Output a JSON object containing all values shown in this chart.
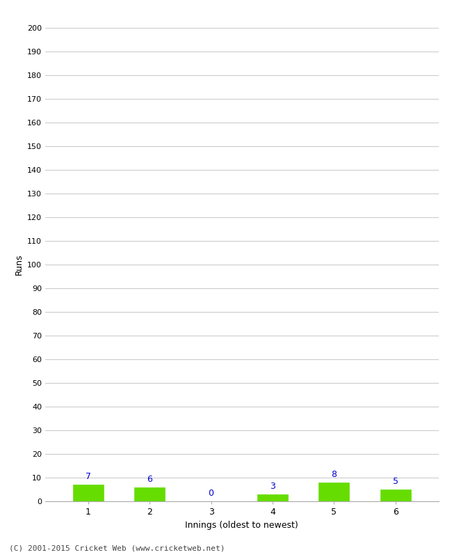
{
  "categories": [
    1,
    2,
    3,
    4,
    5,
    6
  ],
  "values": [
    7,
    6,
    0,
    3,
    8,
    5
  ],
  "bar_color": "#66dd00",
  "bar_edge_color": "#66dd00",
  "label_color": "#0000cc",
  "xlabel": "Innings (oldest to newest)",
  "ylabel": "Runs",
  "ylim": [
    0,
    200
  ],
  "yticks": [
    0,
    10,
    20,
    30,
    40,
    50,
    60,
    70,
    80,
    90,
    100,
    110,
    120,
    130,
    140,
    150,
    160,
    170,
    180,
    190,
    200
  ],
  "footer": "(C) 2001-2015 Cricket Web (www.cricketweb.net)",
  "background_color": "#ffffff",
  "grid_color": "#cccccc"
}
